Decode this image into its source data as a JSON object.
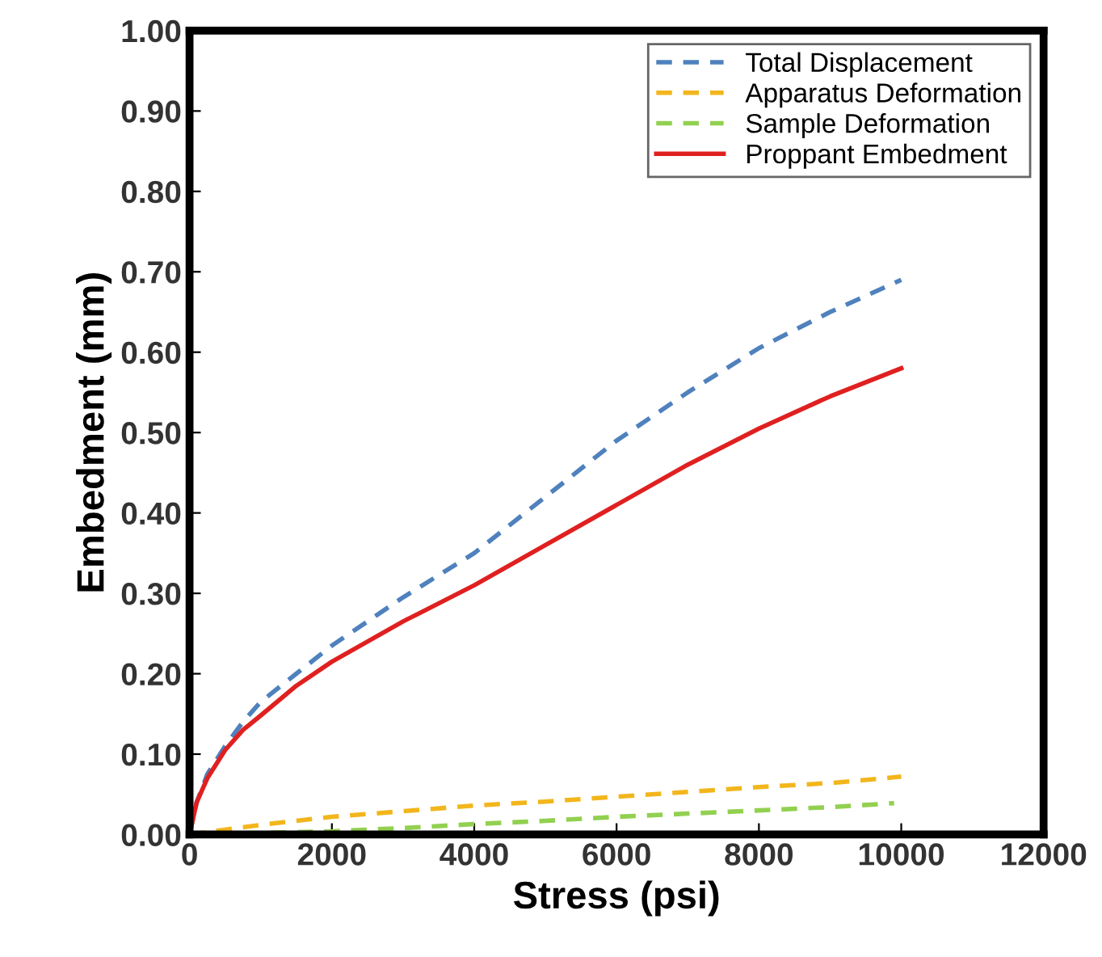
{
  "chart_data": {
    "type": "line",
    "xlabel": "Stress (psi)",
    "ylabel": "Embedment (mm)",
    "xlim": [
      0,
      12000
    ],
    "xticks": [
      0,
      2000,
      4000,
      6000,
      8000,
      10000,
      12000
    ],
    "ylim": [
      0,
      1.0
    ],
    "yticks": [
      {
        "value": 0,
        "label": "0.00"
      },
      {
        "value": 0.1,
        "label": "0.10"
      },
      {
        "value": 0.2,
        "label": "0.20"
      },
      {
        "value": 0.3,
        "label": "0.30"
      },
      {
        "value": 0.4,
        "label": "0.40"
      },
      {
        "value": 0.5,
        "label": "0.50"
      },
      {
        "value": 0.6,
        "label": "0.60"
      },
      {
        "value": 0.7,
        "label": "0.70"
      },
      {
        "value": 0.8,
        "label": "0.80"
      },
      {
        "value": 0.9,
        "label": "0.90"
      },
      {
        "value": 1.0,
        "label": "1.00"
      }
    ],
    "grid": false,
    "legend": "top right",
    "marker": "none",
    "series": [
      {
        "name": "Total Displacement",
        "color": "#4f81bd",
        "line_style": "dashed",
        "x": [
          0,
          100,
          250,
          500,
          750,
          1000,
          1500,
          2000,
          3000,
          4000,
          5000,
          6000,
          7000,
          8000,
          9000,
          10000
        ],
        "values": [
          0,
          0.04,
          0.075,
          0.11,
          0.14,
          0.165,
          0.2,
          0.235,
          0.295,
          0.35,
          0.42,
          0.49,
          0.55,
          0.605,
          0.65,
          0.69
        ]
      },
      {
        "name": "Apparatus Deformation",
        "color": "#f2b61c",
        "line_style": "dashed",
        "x": [
          0,
          500,
          1000,
          2000,
          3000,
          4000,
          5000,
          6000,
          7000,
          8000,
          9000,
          10000
        ],
        "values": [
          0,
          0.006,
          0.012,
          0.022,
          0.029,
          0.036,
          0.041,
          0.047,
          0.053,
          0.059,
          0.064,
          0.072
        ]
      },
      {
        "name": "Sample Deformation",
        "color": "#92d050",
        "line_style": "dashed",
        "x": [
          0,
          1000,
          2000,
          3000,
          4000,
          5000,
          6000,
          7000,
          8000,
          9000,
          9900
        ],
        "values": [
          0,
          0.002,
          0.004,
          0.008,
          0.013,
          0.017,
          0.022,
          0.026,
          0.03,
          0.034,
          0.039
        ]
      },
      {
        "name": "Proppant Embedment",
        "color": "#e02020",
        "line_style": "solid",
        "x": [
          0,
          100,
          250,
          500,
          750,
          1000,
          1500,
          2000,
          3000,
          4000,
          5000,
          6000,
          7000,
          8000,
          9000,
          10000
        ],
        "values": [
          0,
          0.04,
          0.07,
          0.105,
          0.13,
          0.148,
          0.185,
          0.215,
          0.265,
          0.31,
          0.36,
          0.41,
          0.46,
          0.505,
          0.545,
          0.58
        ]
      }
    ]
  }
}
